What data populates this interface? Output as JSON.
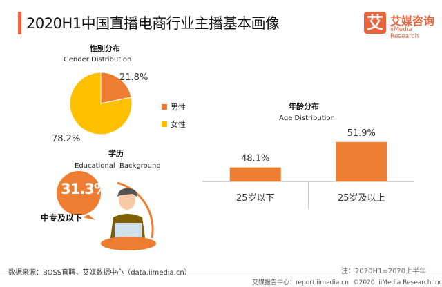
{
  "header": {
    "title": "2020H1中国直播电商行业主播基本画像",
    "logo_mark": "艾",
    "logo_cn": "艾媒咨询",
    "logo_en": "iiMedia Research"
  },
  "colors": {
    "accent": "#e8623a",
    "orange": "#ed7d31",
    "yellow": "#ffc000"
  },
  "chart_data": [
    {
      "type": "pie",
      "title": "性别分布",
      "subtitle": "Gender Distribution",
      "slices": [
        {
          "name": "男性",
          "value": 21.8,
          "label": "21.8%",
          "color": "#ed7d31"
        },
        {
          "name": "女性",
          "value": 78.2,
          "label": "78.2%",
          "color": "#ffc000"
        }
      ],
      "legend": "right"
    },
    {
      "type": "bar",
      "title": "年龄分布",
      "subtitle": "Age Distribution",
      "categories": [
        "25岁以下",
        "25岁及以上"
      ],
      "values": [
        48.1,
        51.9
      ],
      "labels": [
        "48.1%",
        "51.9%"
      ],
      "color": "#ed7d31",
      "ylim": [
        46,
        52.5
      ],
      "grid": false
    }
  ],
  "education": {
    "title": "学历",
    "subtitle": "Educational  Background",
    "value": "31.3%",
    "category": "中专及以下"
  },
  "footer": {
    "source": "数据来源：BOSS直聘，艾媒数据中心（data.iimedia.cn）",
    "note": "注：2020H1=2020上半年",
    "copyright": "艾媒报告中心：report.iimedia.cn  ©2020  iiMedia Research Inc"
  }
}
